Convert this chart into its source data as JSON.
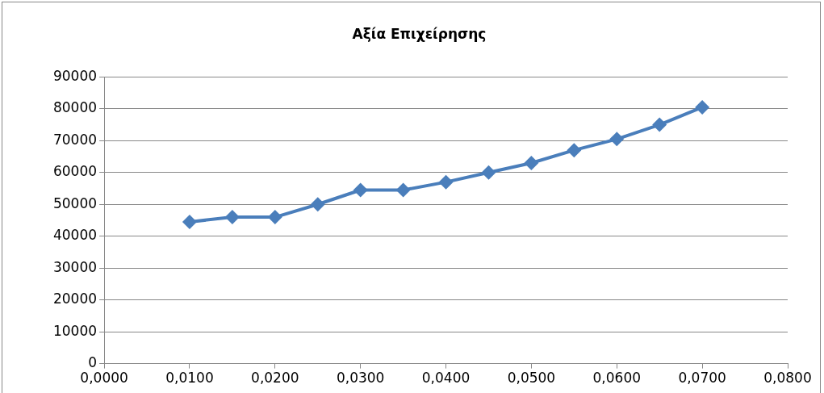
{
  "chart_data": {
    "type": "line",
    "title": "Αξία Επιχείρησης",
    "x": [
      0.01,
      0.015,
      0.02,
      0.025,
      0.03,
      0.035,
      0.04,
      0.045,
      0.05,
      0.055,
      0.06,
      0.065,
      0.07
    ],
    "series": [
      {
        "color": "#4a7ebb",
        "values": [
          44500,
          46000,
          46000,
          50000,
          54500,
          54500,
          57000,
          60000,
          63000,
          67000,
          70500,
          75000,
          80500
        ]
      }
    ],
    "xlim": [
      0,
      0.08
    ],
    "xticks": [
      {
        "value": 0,
        "label": "0,0000"
      },
      {
        "value": 0.01,
        "label": "0,0100"
      },
      {
        "value": 0.02,
        "label": "0,0200"
      },
      {
        "value": 0.03,
        "label": "0,0300"
      },
      {
        "value": 0.04,
        "label": "0,0400"
      },
      {
        "value": 0.05,
        "label": "0,0500"
      },
      {
        "value": 0.06,
        "label": "0,0600"
      },
      {
        "value": 0.07,
        "label": "0,0700"
      },
      {
        "value": 0.08,
        "label": "0,0800"
      }
    ],
    "ylim": [
      0,
      90000
    ],
    "yticks": [
      0,
      10000,
      20000,
      30000,
      40000,
      50000,
      60000,
      70000,
      80000,
      90000
    ],
    "grid": "y",
    "legend": false,
    "marker": "diamond",
    "line_style": "solid"
  }
}
